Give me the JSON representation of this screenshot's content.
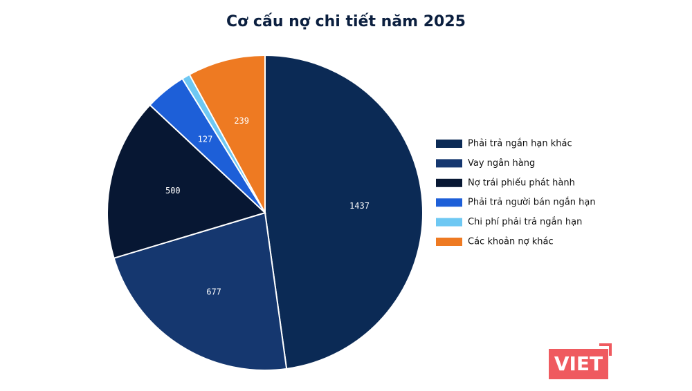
{
  "chart_data": {
    "type": "pie",
    "title": "Cơ cấu nợ chi tiết năm 2025",
    "categories": [
      "Phải trả ngắn hạn khác",
      "Vay ngân hàng",
      "Nợ trái phiếu phát hành",
      "Phải trả người bán ngắn hạn",
      "Chi phí phải trả ngắn hạn",
      "Các khoản nợ khác"
    ],
    "values": [
      1437,
      677,
      500,
      127,
      25,
      239
    ],
    "colors": [
      "#0b2a55",
      "#15376f",
      "#071733",
      "#1d5fd8",
      "#6ec8f3",
      "#ee7a22"
    ],
    "legend": "right"
  },
  "watermark": "VIET"
}
